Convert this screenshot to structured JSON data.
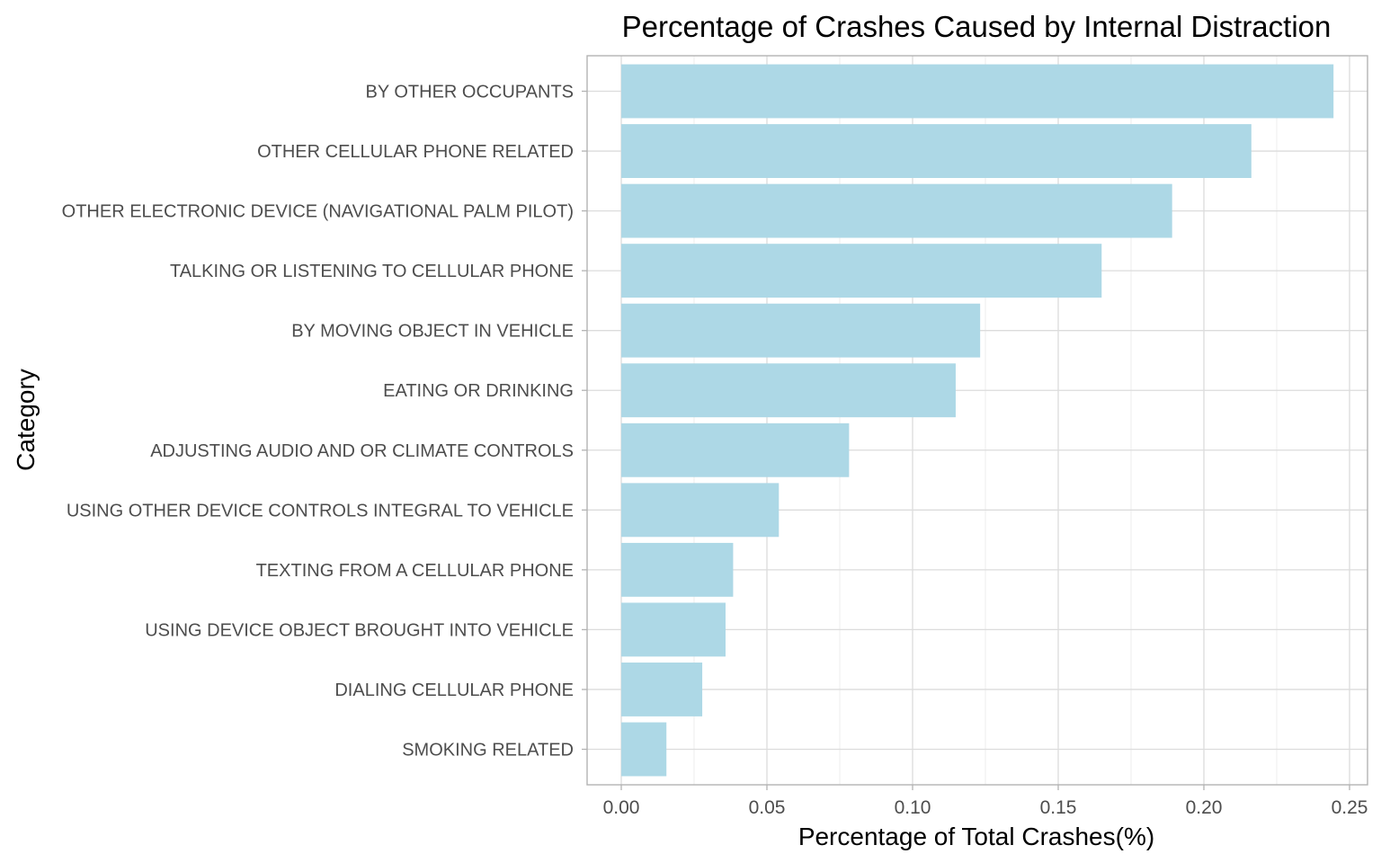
{
  "chart_data": {
    "type": "bar",
    "orientation": "horizontal",
    "title": "Percentage of Crashes Caused by Internal Distraction",
    "xlabel": "Percentage of Total Crashes(%)",
    "ylabel": "Category",
    "xlim": [
      0,
      0.25
    ],
    "x_ticks": [
      "0.00",
      "0.05",
      "0.10",
      "0.15",
      "0.20",
      "0.25"
    ],
    "x_tick_values": [
      0,
      0.05,
      0.1,
      0.15,
      0.2,
      0.25
    ],
    "grid": true,
    "bar_color": "#add8e6",
    "categories": [
      "BY OTHER OCCUPANTS",
      "OTHER CELLULAR PHONE RELATED",
      "OTHER ELECTRONIC DEVICE (NAVIGATIONAL PALM PILOT)",
      "TALKING OR LISTENING TO CELLULAR PHONE",
      "BY MOVING OBJECT IN VEHICLE",
      "EATING OR DRINKING",
      "ADJUSTING AUDIO AND OR CLIMATE CONTROLS",
      "USING OTHER DEVICE CONTROLS INTEGRAL TO VEHICLE",
      "TEXTING FROM A CELLULAR PHONE",
      "USING DEVICE OBJECT BROUGHT INTO VEHICLE",
      "DIALING CELLULAR PHONE",
      "SMOKING RELATED"
    ],
    "values": [
      0.2445,
      0.2163,
      0.1891,
      0.1649,
      0.1232,
      0.1148,
      0.0782,
      0.0541,
      0.0384,
      0.0358,
      0.0278,
      0.0155
    ]
  }
}
